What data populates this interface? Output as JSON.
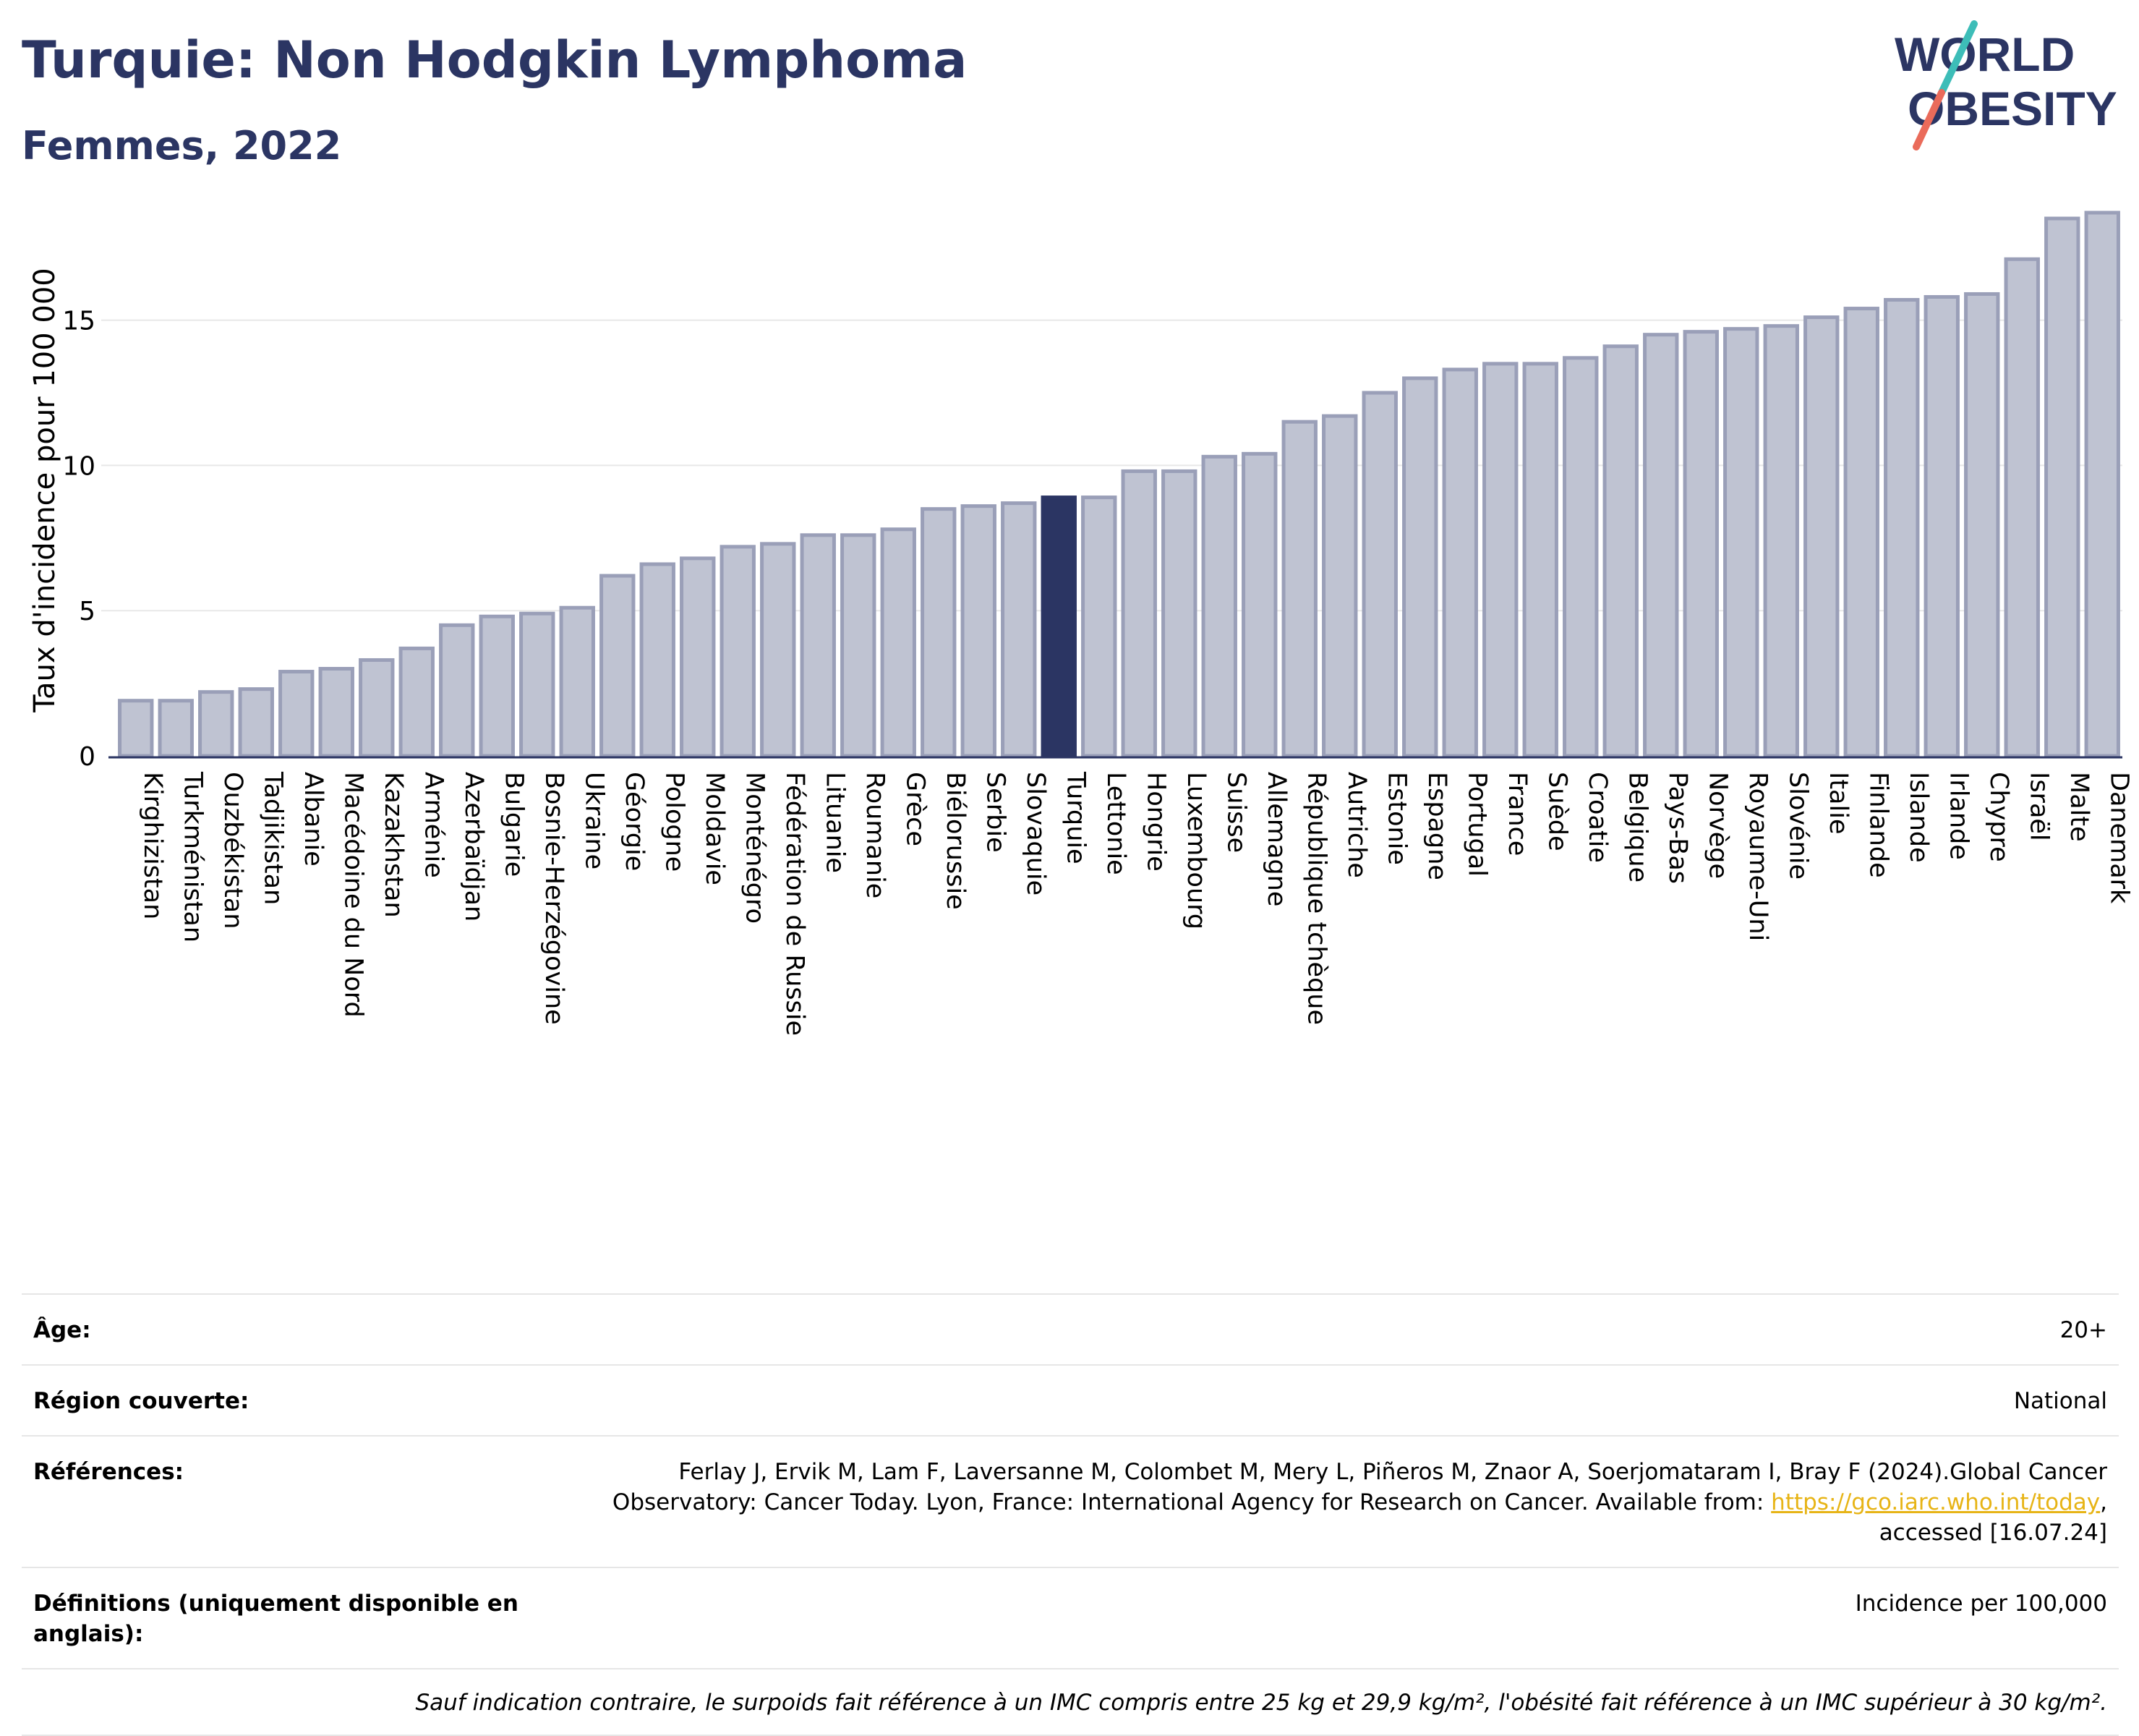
{
  "header": {
    "title": "Turquie: Non Hodgkin Lymphoma",
    "subtitle": "Femmes, 2022"
  },
  "logo": {
    "line1": "WORLD",
    "line2": "OBESITY"
  },
  "colors": {
    "bar": "#bfc3d2",
    "bar_border": "#9a9fb8",
    "highlight": "#2b3563",
    "grid": "#e8e8e8",
    "text": "#2b3563"
  },
  "chart_data": {
    "type": "bar",
    "ylabel": "Taux d'incidence pour 100 000",
    "ylim": [
      0,
      18.8
    ],
    "yticks": [
      0,
      5,
      10,
      15
    ],
    "grid": true,
    "highlight": "Turquie",
    "categories": [
      "Kirghizistan",
      "Turkménistan",
      "Ouzbékistan",
      "Tadjikistan",
      "Albanie",
      "Macédoine du Nord",
      "Kazakhstan",
      "Arménie",
      "Azerbaïdjan",
      "Bulgarie",
      "Bosnie-Herzégovine",
      "Ukraine",
      "Géorgie",
      "Pologne",
      "Moldavie",
      "Monténégro",
      "Fédération de Russie",
      "Lituanie",
      "Roumanie",
      "Grèce",
      "Biélorussie",
      "Serbie",
      "Slovaquie",
      "Turquie",
      "Lettonie",
      "Hongrie",
      "Luxembourg",
      "Suisse",
      "Allemagne",
      "République tchèque",
      "Autriche",
      "Estonie",
      "Espagne",
      "Portugal",
      "France",
      "Suède",
      "Croatie",
      "Belgique",
      "Pays-Bas",
      "Norvège",
      "Royaume-Uni",
      "Slovénie",
      "Italie",
      "Finlande",
      "Islande",
      "Irlande",
      "Chypre",
      "Israël",
      "Malte",
      "Danemark"
    ],
    "values": [
      1.9,
      1.9,
      2.2,
      2.3,
      2.9,
      3.0,
      3.3,
      3.7,
      4.5,
      4.8,
      4.9,
      5.1,
      6.2,
      6.6,
      6.8,
      7.2,
      7.3,
      7.6,
      7.6,
      7.8,
      8.5,
      8.6,
      8.7,
      8.9,
      8.9,
      9.8,
      9.8,
      10.3,
      10.4,
      11.5,
      11.7,
      12.5,
      13.0,
      13.3,
      13.5,
      13.5,
      13.7,
      14.1,
      14.5,
      14.6,
      14.7,
      14.8,
      15.1,
      15.4,
      15.7,
      15.8,
      15.9,
      17.1,
      18.5,
      18.7
    ]
  },
  "info": {
    "age_label": "Âge:",
    "age_value": "20+",
    "region_label": "Région couverte:",
    "region_value": "National",
    "refs_label": "Références:",
    "refs_text_1": "Ferlay J, Ervik M, Lam F, Laversanne M, Colombet M, Mery L, Piñeros M, Znaor A, Soerjomataram I, Bray F (2024).Global Cancer",
    "refs_text_2": "Observatory: Cancer Today. Lyon, France: International Agency for Research on Cancer. Available from: ",
    "refs_link": "https://gco.iarc.who.int/today",
    "refs_text_3": ",",
    "refs_text_4": "accessed [16.07.24]",
    "defs_label": "Définitions (uniquement disponible en anglais):",
    "defs_value": "Incidence per 100,000",
    "note": "Sauf indication contraire, le surpoids fait référence à un IMC compris entre 25 kg et 29,9 kg/m², l'obésité fait référence à un IMC supérieur à 30 kg/m²."
  }
}
